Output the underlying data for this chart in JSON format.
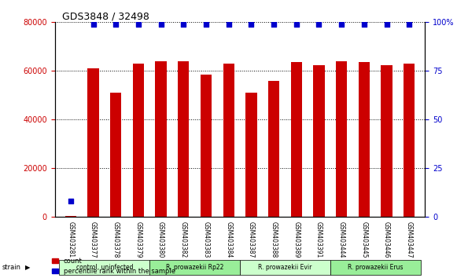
{
  "title": "GDS3848 / 32498",
  "samples": [
    "GSM403281",
    "GSM403377",
    "GSM403378",
    "GSM403379",
    "GSM403380",
    "GSM403382",
    "GSM403383",
    "GSM403384",
    "GSM403387",
    "GSM403388",
    "GSM403389",
    "GSM403391",
    "GSM403444",
    "GSM403445",
    "GSM403446",
    "GSM403447"
  ],
  "counts": [
    500,
    61000,
    51000,
    63000,
    64000,
    64000,
    58500,
    63000,
    51000,
    56000,
    63500,
    62500,
    64000,
    63500,
    62500,
    63000
  ],
  "percentiles": [
    8,
    99,
    99,
    99,
    99,
    99,
    99,
    99,
    99,
    99,
    99,
    99,
    99,
    99,
    99,
    99
  ],
  "groups": [
    {
      "label": "control, uninfected",
      "start": 0,
      "end": 3,
      "color": "#ccffcc"
    },
    {
      "label": "R. prowazekii Rp22",
      "start": 4,
      "end": 7,
      "color": "#99ee99"
    },
    {
      "label": "R. prowazekii Evir",
      "start": 8,
      "end": 11,
      "color": "#ccffcc"
    },
    {
      "label": "R. prowazekii Erus",
      "start": 12,
      "end": 15,
      "color": "#99ee99"
    }
  ],
  "bar_color": "#cc0000",
  "dot_color": "#0000cc",
  "bg_color": "#ffffff",
  "left_axis_color": "#cc0000",
  "right_axis_color": "#0000cc",
  "ylim_left": [
    0,
    80000
  ],
  "ylim_right": [
    0,
    100
  ],
  "yticks_left": [
    0,
    20000,
    40000,
    60000,
    80000
  ],
  "yticks_right": [
    0,
    25,
    50,
    75,
    100
  ],
  "xlabel_area_color": "#cccccc",
  "strain_label": "strain"
}
